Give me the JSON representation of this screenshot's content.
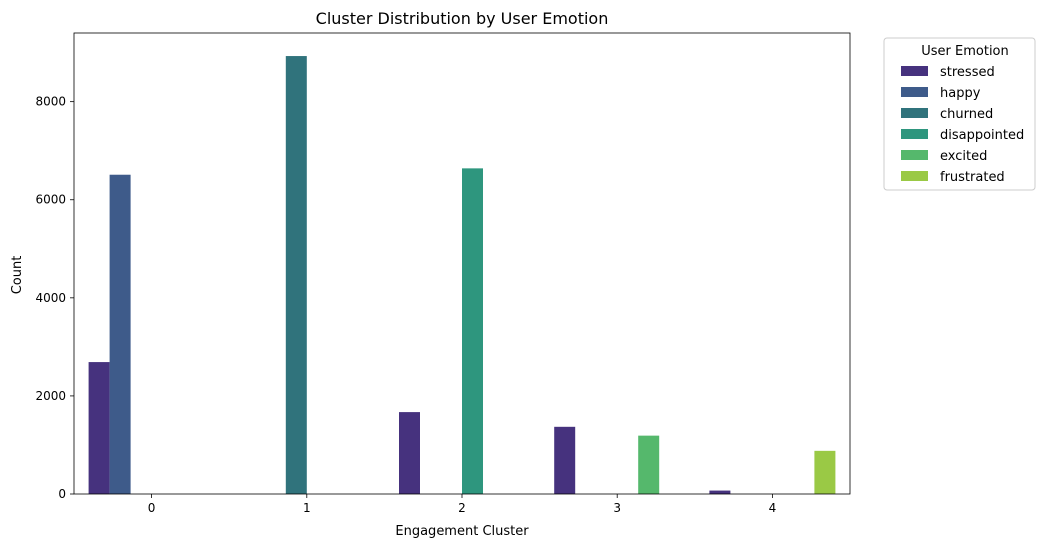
{
  "chart_data": {
    "type": "bar",
    "title": "Cluster Distribution by User Emotion",
    "xlabel": "Engagement Cluster",
    "ylabel": "Count",
    "categories": [
      "0",
      "1",
      "2",
      "3",
      "4"
    ],
    "yticks": [
      "0",
      "2000",
      "4000",
      "6000",
      "8000"
    ],
    "ylim": [
      0,
      9400
    ],
    "grid": false,
    "legend": {
      "title": "User Emotion",
      "placement": "outside-right-top"
    },
    "series": [
      {
        "name": "stressed",
        "color": "#46327e",
        "values": [
          2690,
          0,
          1670,
          1370,
          70
        ]
      },
      {
        "name": "happy",
        "color": "#3e5b8a",
        "values": [
          6510,
          0,
          0,
          0,
          0
        ]
      },
      {
        "name": "churned",
        "color": "#30737c",
        "values": [
          0,
          8930,
          0,
          0,
          0
        ]
      },
      {
        "name": "disappointed",
        "color": "#2e967e",
        "values": [
          0,
          0,
          6640,
          0,
          0
        ]
      },
      {
        "name": "excited",
        "color": "#55b86c",
        "values": [
          0,
          0,
          0,
          1190,
          0
        ]
      },
      {
        "name": "frustrated",
        "color": "#9ac945",
        "values": [
          0,
          0,
          0,
          0,
          880
        ]
      }
    ]
  }
}
